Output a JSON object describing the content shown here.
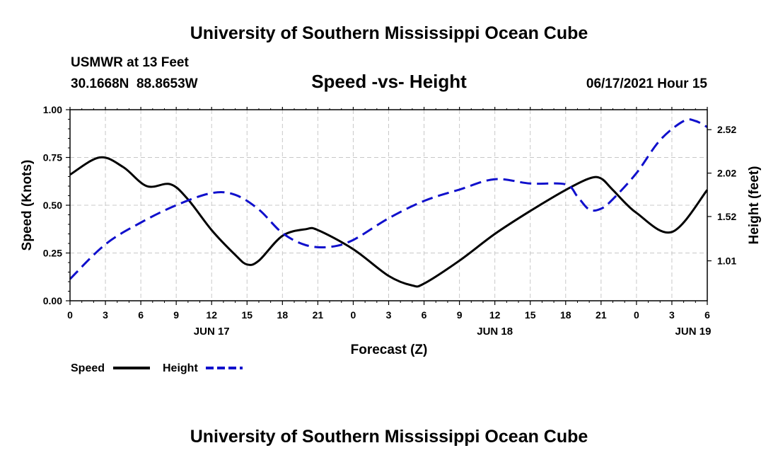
{
  "header": {
    "title_top": "University of Southern Mississippi Ocean Cube",
    "title_bottom": "University of Southern Mississippi Ocean Cube",
    "station": "USMWR at 13 Feet",
    "coords": "30.1668N  88.8653W",
    "chart_title": "Speed -vs- Height",
    "timestamp": "06/17/2021 Hour 15"
  },
  "legend": {
    "speed_label": "Speed",
    "height_label": "Height"
  },
  "colors": {
    "speed": "#000000",
    "height": "#1010cc",
    "grid": "#c8c8c8"
  },
  "chart_data": {
    "type": "line",
    "title": "Speed -vs- Height",
    "xlabel": "Forecast (Z)",
    "ylabel": "Speed (Knots)",
    "y2label": "Height (feet)",
    "x_hours_range": [
      0,
      54
    ],
    "x_tick_labels": [
      "0",
      "3",
      "6",
      "9",
      "12",
      "15",
      "18",
      "21",
      "0",
      "3",
      "6",
      "9",
      "12",
      "15",
      "18",
      "21",
      "0",
      "3",
      "6"
    ],
    "date_labels": [
      {
        "hour": 12,
        "label": "JUN 17"
      },
      {
        "hour": 36,
        "label": "JUN 18"
      },
      {
        "hour": 52.8,
        "label": "JUN 19"
      }
    ],
    "ylim": [
      0,
      1.0
    ],
    "y_ticks": [
      "0.00",
      "0.25",
      "0.50",
      "0.75",
      "1.00"
    ],
    "y2lim": [
      0.55,
      2.75
    ],
    "y2_ticks": [
      "1.01",
      "1.52",
      "2.02",
      "2.52"
    ],
    "grid": true,
    "series": [
      {
        "name": "Speed",
        "axis": "left",
        "style": "solid",
        "x": [
          0,
          2.5,
          4.5,
          6.5,
          8.5,
          10,
          12,
          14,
          15,
          16,
          18,
          20,
          21,
          24,
          27,
          29,
          30,
          33,
          36,
          39,
          42,
          44,
          45,
          46,
          48,
          51,
          54
        ],
        "y": [
          0.66,
          0.75,
          0.7,
          0.6,
          0.61,
          0.53,
          0.37,
          0.24,
          0.19,
          0.21,
          0.34,
          0.375,
          0.37,
          0.27,
          0.13,
          0.08,
          0.09,
          0.21,
          0.35,
          0.47,
          0.58,
          0.64,
          0.64,
          0.58,
          0.46,
          0.36,
          0.58
        ]
      },
      {
        "name": "Height",
        "axis": "right",
        "style": "dashed",
        "x": [
          0,
          3,
          6,
          9,
          12,
          14,
          16,
          18,
          20,
          22,
          24,
          27,
          30,
          33,
          36,
          39,
          42,
          43,
          44,
          45,
          46,
          48,
          50,
          52,
          53,
          54
        ],
        "y": [
          0.8,
          1.2,
          1.45,
          1.65,
          1.79,
          1.77,
          1.6,
          1.33,
          1.19,
          1.17,
          1.25,
          1.5,
          1.7,
          1.83,
          1.95,
          1.9,
          1.89,
          1.75,
          1.6,
          1.61,
          1.72,
          2.02,
          2.4,
          2.62,
          2.62,
          2.55
        ]
      }
    ]
  }
}
